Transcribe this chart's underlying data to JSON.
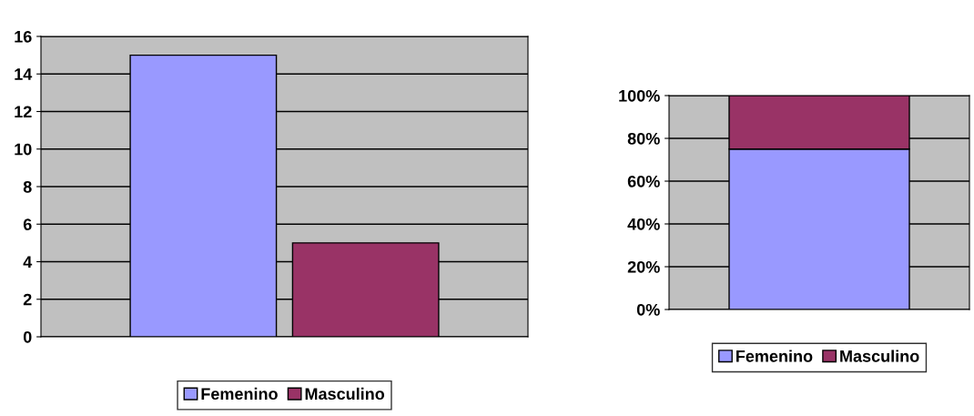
{
  "chart_data": [
    {
      "type": "bar",
      "categories": [
        null
      ],
      "series": [
        {
          "name": "Femenino",
          "color": "#9999ff",
          "values": [
            15
          ]
        },
        {
          "name": "Masculino",
          "color": "#993366",
          "values": [
            5
          ]
        }
      ],
      "ylim": [
        0,
        16
      ],
      "yticks": [
        0,
        2,
        4,
        6,
        8,
        10,
        12,
        14,
        16
      ],
      "grid": "y",
      "legend": "bottom"
    },
    {
      "type": "bar",
      "stacked": true,
      "categories": [
        null
      ],
      "series": [
        {
          "name": "Femenino",
          "color": "#9999ff",
          "values": [
            75
          ]
        },
        {
          "name": "Masculino",
          "color": "#993366",
          "values": [
            25
          ]
        }
      ],
      "ylim": [
        0,
        100
      ],
      "yticks": [
        {
          "value": 0,
          "label": "0%"
        },
        {
          "value": 20,
          "label": "20%"
        },
        {
          "value": 40,
          "label": "40%"
        },
        {
          "value": 60,
          "label": "60%"
        },
        {
          "value": 80,
          "label": "80%"
        },
        {
          "value": 100,
          "label": "100%"
        }
      ],
      "grid": "y",
      "legend": "bottom"
    }
  ]
}
